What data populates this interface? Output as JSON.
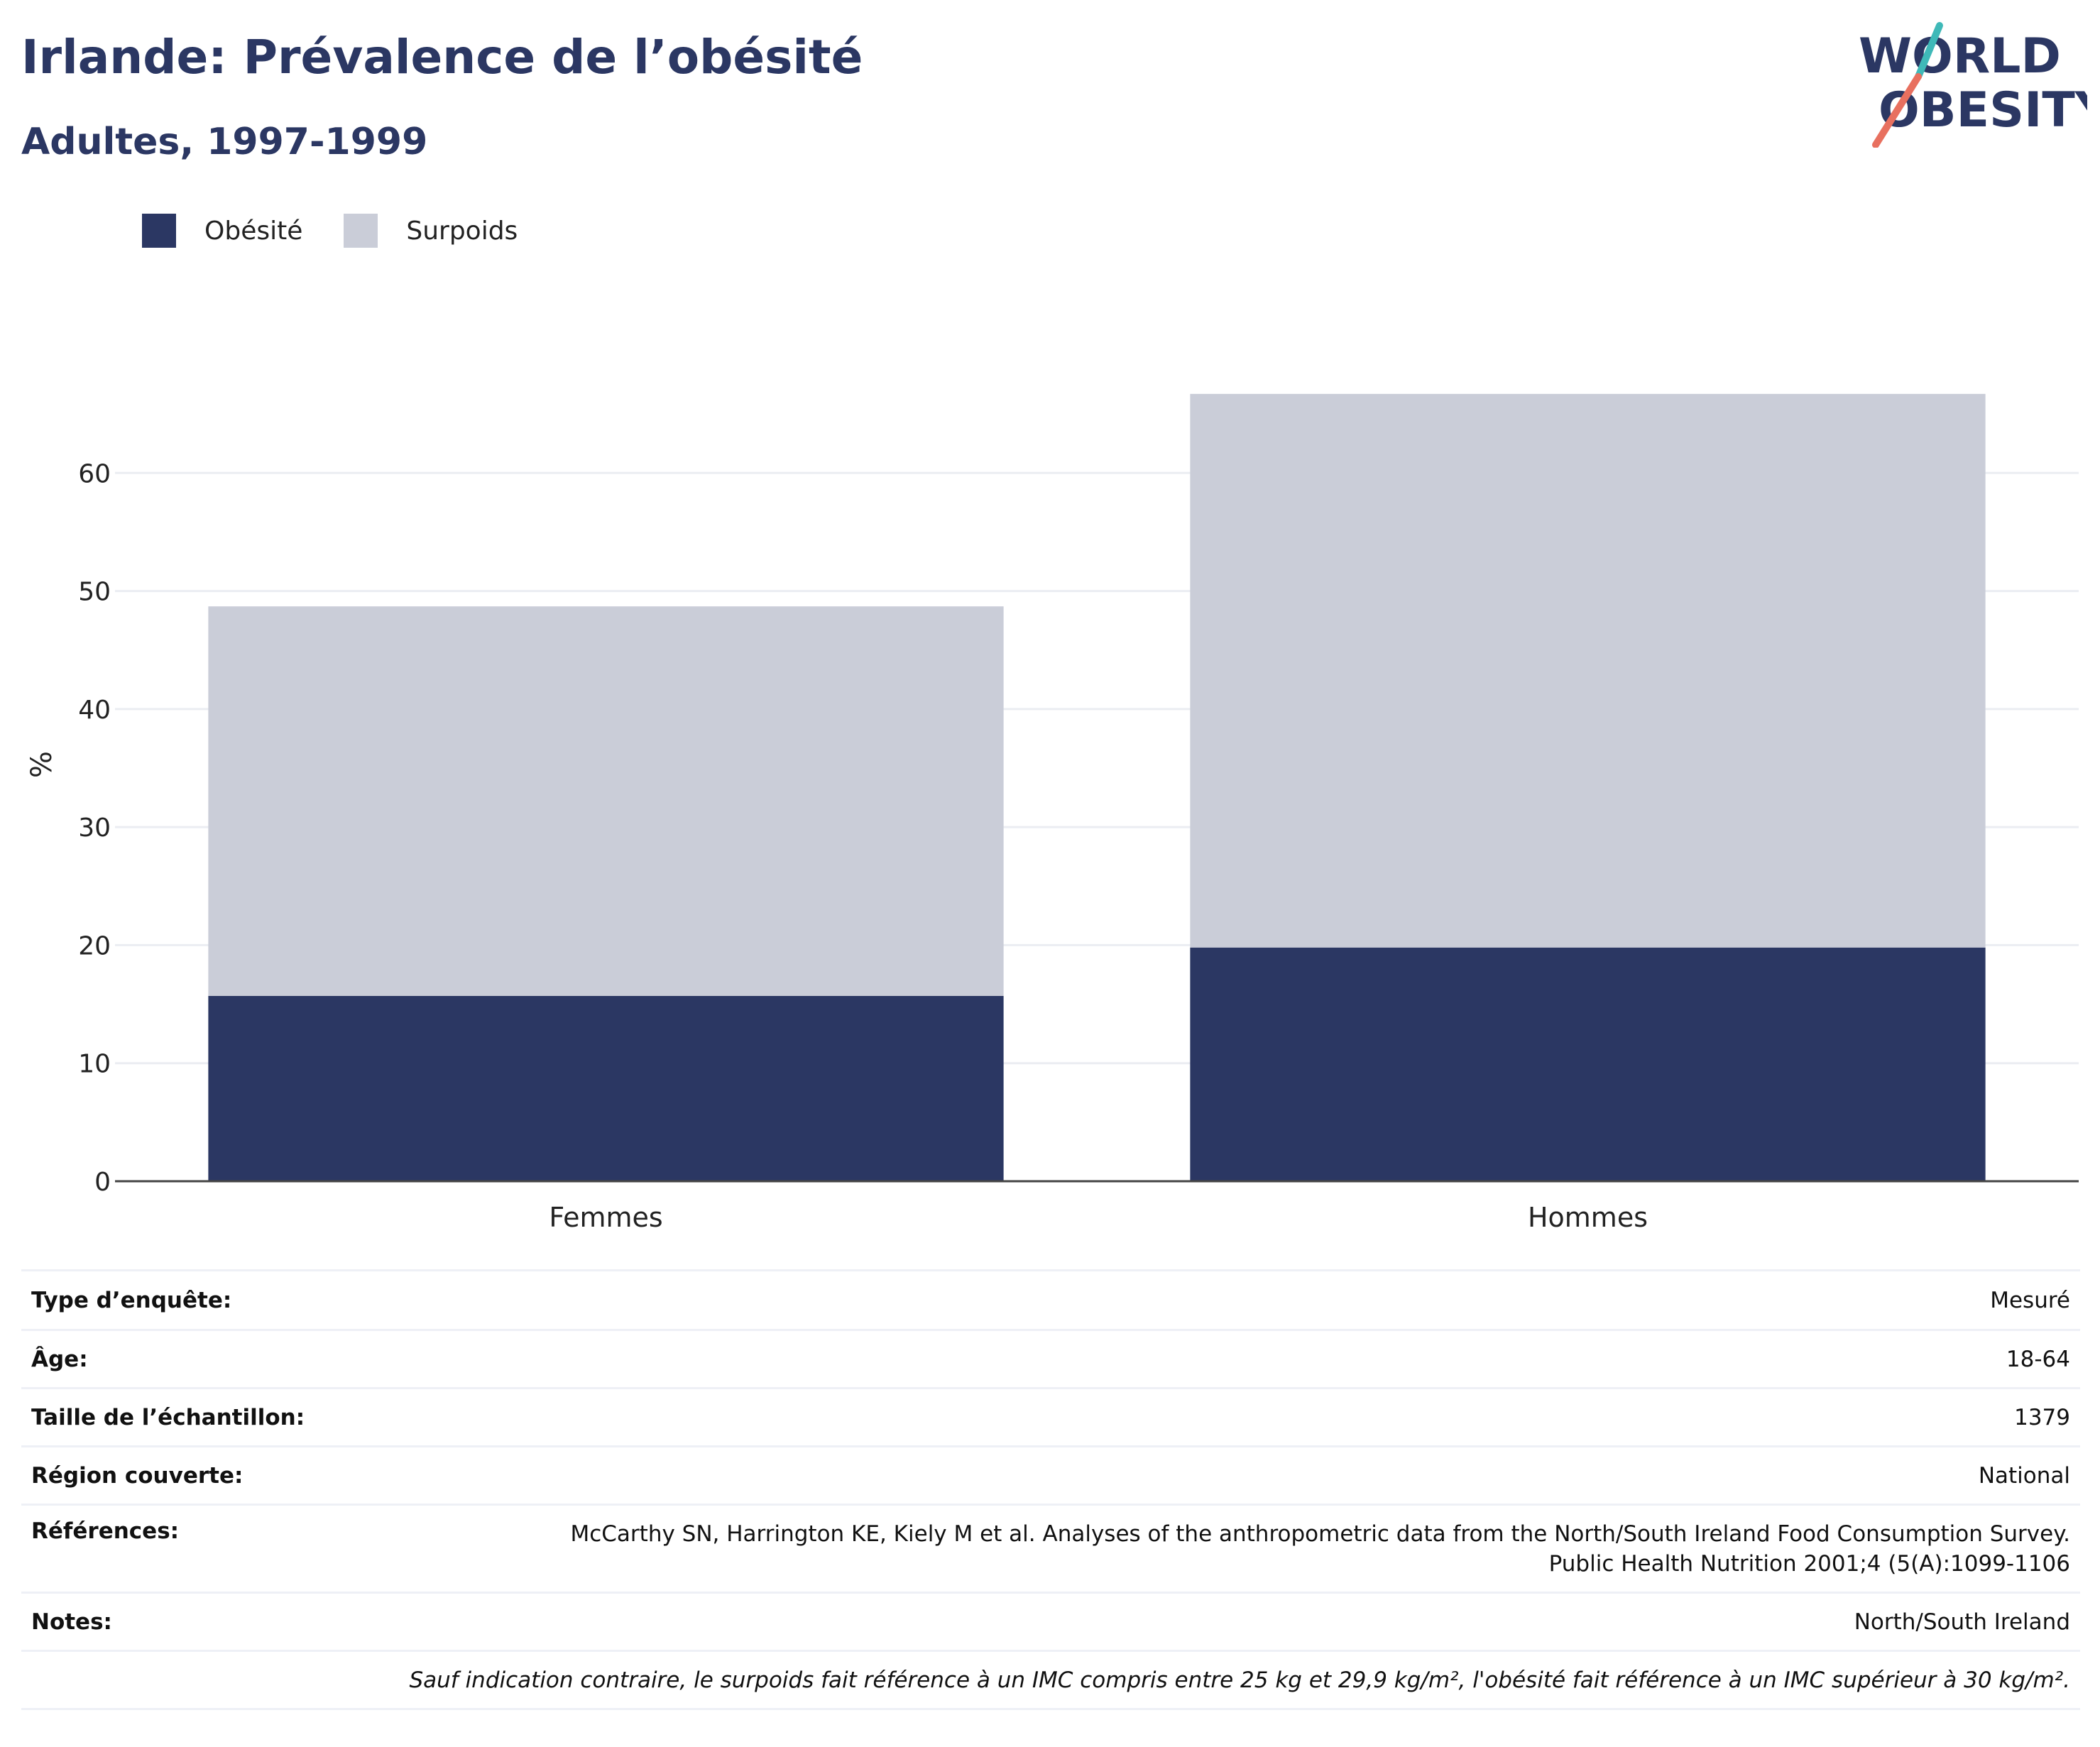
{
  "header": {
    "title": "Irlande: Prévalence de l’obésité",
    "subtitle": "Adultes, 1997-1999"
  },
  "logo": {
    "line1": "WORLD",
    "line2": "OBESITY",
    "accent_teal": "#3fb9b8",
    "accent_coral": "#e8705f",
    "text_color": "#2b3763"
  },
  "chart_data": {
    "type": "bar",
    "stacked": true,
    "categories": [
      "Femmes",
      "Hommes"
    ],
    "series": [
      {
        "name": "Obésité",
        "values": [
          15.7,
          19.8
        ],
        "color": "#2b3763"
      },
      {
        "name": "Surpoids",
        "values": [
          33.0,
          46.9
        ],
        "color": "#cacdd8"
      }
    ],
    "ylabel": "%",
    "xlabel": "",
    "ylim": [
      0,
      70
    ],
    "yticks": [
      0,
      10,
      20,
      30,
      40,
      50,
      60
    ],
    "grid": true,
    "legend": "top-left"
  },
  "info": {
    "rows": [
      {
        "key": "Type d’enquête:",
        "value": "Mesuré"
      },
      {
        "key": "Âge:",
        "value": "18-64"
      },
      {
        "key": "Taille de l’échantillon:",
        "value": "1379"
      },
      {
        "key": "Région couverte:",
        "value": "National"
      },
      {
        "key": "Références:",
        "value_lines": [
          "McCarthy SN, Harrington KE, Kiely M et al. Analyses of the anthropometric data from the North/South Ireland Food Consumption Survey.",
          "Public Health Nutrition 2001;4 (5(A):1099-1106"
        ]
      },
      {
        "key": "Notes:",
        "value": "North/South Ireland"
      }
    ],
    "footnote": "Sauf indication contraire, le surpoids fait référence à un IMC compris entre 25 kg et 29,9 kg/m², l'obésité fait référence à un IMC supérieur à 30 kg/m²."
  }
}
